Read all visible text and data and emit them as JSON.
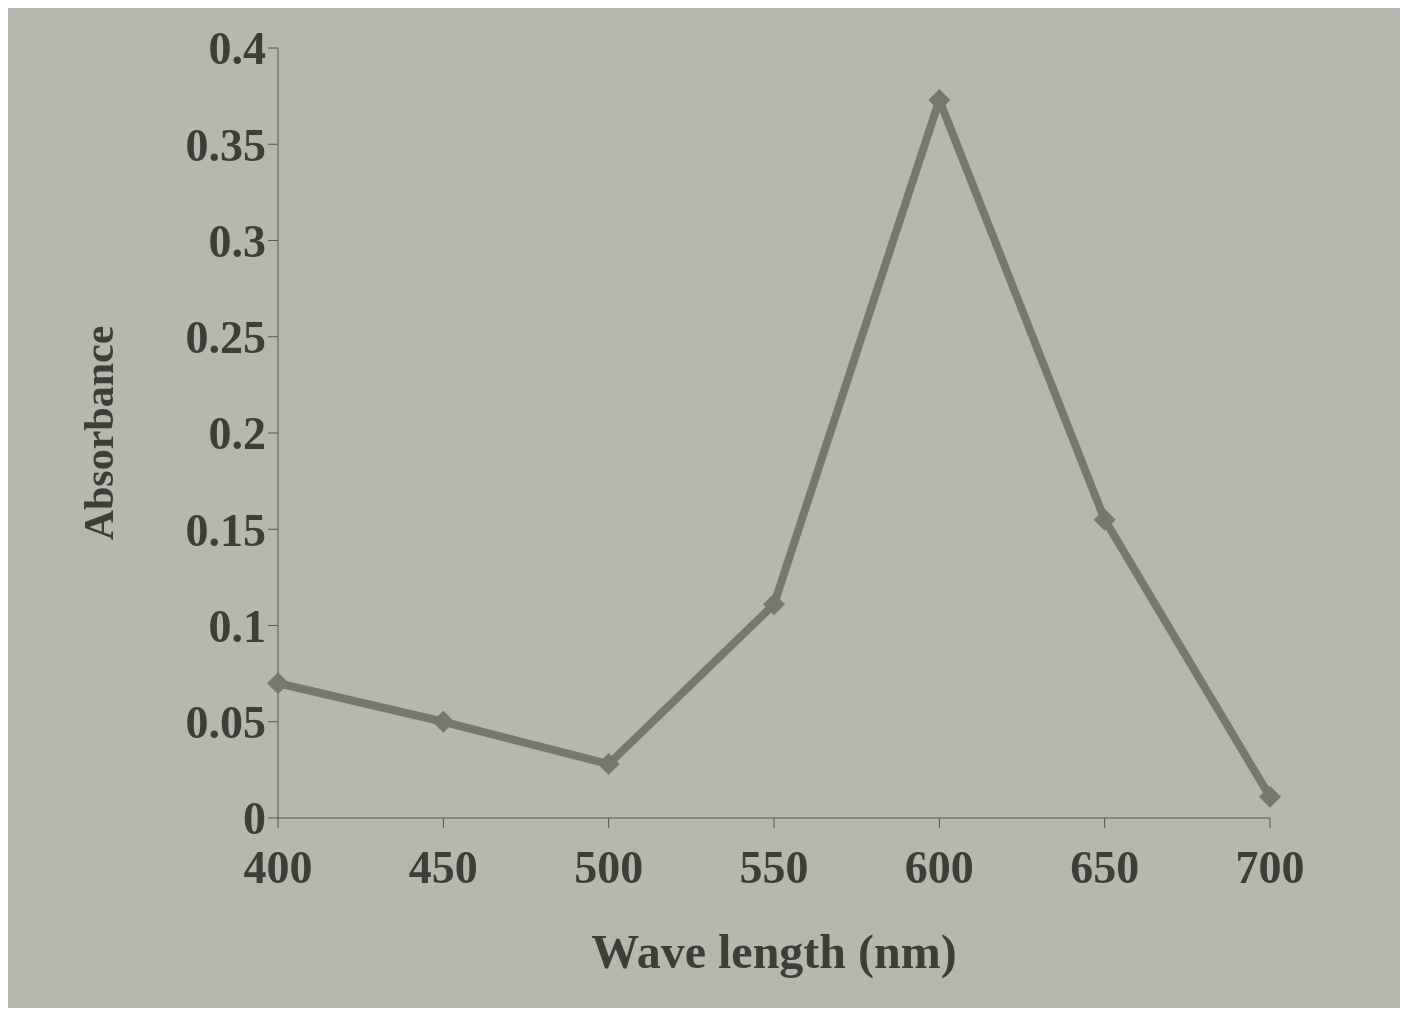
{
  "chart_data": {
    "type": "line",
    "xlabel": "Wave length (nm)",
    "ylabel": "Absorbance",
    "categories": [
      "400",
      "450",
      "500",
      "550",
      "600",
      "650",
      "700"
    ],
    "series": [
      {
        "color": "#77776d",
        "values": [
          0.07,
          0.05,
          0.028,
          0.111,
          0.373,
          0.155,
          0.011
        ]
      }
    ],
    "ylim": [
      0,
      0.4
    ],
    "yticks": [
      0,
      0.05,
      0.1,
      0.15,
      0.2,
      0.25,
      0.3,
      0.35,
      0.4
    ],
    "grid": false,
    "legend": false,
    "marker": "diamond",
    "line_style": "solid"
  }
}
